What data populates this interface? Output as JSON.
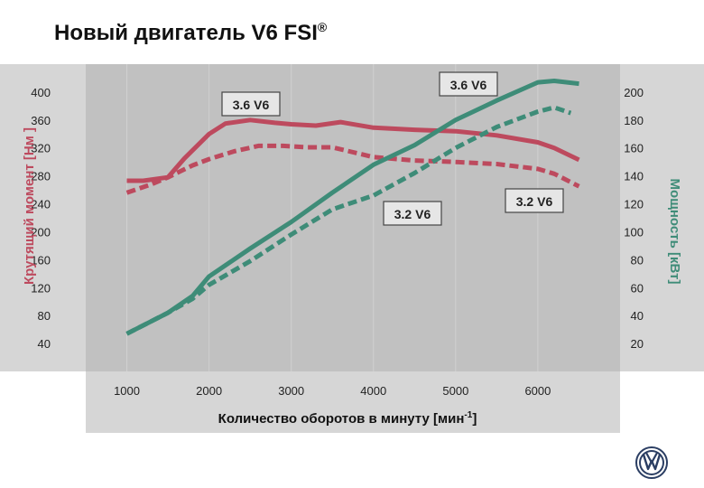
{
  "title": "Новый двигатель V6 FSI",
  "title_mark": "®",
  "logo": "VW",
  "colors": {
    "torque": "#bd4a5e",
    "power": "#3e8c78",
    "panel": "#d6d6d6",
    "plot": "#c0c0c0"
  },
  "chart_data": {
    "type": "line",
    "title": "Новый двигатель V6 FSI®",
    "xlabel": "Количество оборотов в минуту [мин",
    "xlabel_sup": "-1",
    "xlabel_end": "]",
    "ylabel_left": "Крутящий момент [Нм ]",
    "ylabel_right": "Мощность [кВт]",
    "x_ticks": [
      1000,
      2000,
      3000,
      4000,
      5000,
      6000
    ],
    "xlim": [
      500,
      7000
    ],
    "y_left_ticks": [
      40,
      80,
      120,
      160,
      200,
      240,
      280,
      320,
      360,
      400
    ],
    "y_left_lim": [
      0,
      440
    ],
    "y_right_ticks": [
      20,
      40,
      60,
      80,
      100,
      120,
      140,
      160,
      180,
      200
    ],
    "y_right_lim": [
      0,
      220
    ],
    "series": [
      {
        "name": "3.6 V6",
        "quantity": "torque",
        "axis": "left",
        "style": "solid",
        "x": [
          1000,
          1200,
          1500,
          1700,
          2000,
          2200,
          2500,
          2800,
          3000,
          3300,
          3600,
          4000,
          4500,
          5000,
          5500,
          6000,
          6200,
          6500
        ],
        "values": [
          273,
          273,
          278,
          305,
          340,
          355,
          360,
          356,
          354,
          352,
          357,
          349,
          346,
          344,
          338,
          328,
          320,
          303
        ]
      },
      {
        "name": "3.2 V6",
        "quantity": "torque",
        "axis": "left",
        "style": "dashed",
        "x": [
          1000,
          1300,
          1500,
          1800,
          2000,
          2300,
          2600,
          2900,
          3200,
          3500,
          4000,
          4500,
          5000,
          5500,
          6000,
          6200,
          6500
        ],
        "values": [
          256,
          268,
          278,
          295,
          304,
          315,
          323,
          323,
          321,
          321,
          307,
          302,
          300,
          297,
          290,
          283,
          265
        ]
      },
      {
        "name": "3.6 V6",
        "quantity": "power",
        "axis": "right",
        "style": "solid",
        "x": [
          1000,
          1500,
          1800,
          2000,
          2500,
          3000,
          3500,
          4000,
          4500,
          5000,
          5500,
          6000,
          6200,
          6500
        ],
        "values": [
          27,
          42,
          54,
          68,
          88,
          107,
          128,
          148,
          162,
          180,
          194,
          207,
          208,
          206
        ]
      },
      {
        "name": "3.2 V6",
        "quantity": "power",
        "axis": "right",
        "style": "dashed",
        "x": [
          1000,
          1500,
          1800,
          2000,
          2500,
          3000,
          3500,
          4000,
          4500,
          5000,
          5500,
          6000,
          6200,
          6400
        ],
        "values": [
          27,
          42,
          52,
          62,
          79,
          98,
          116,
          126,
          142,
          160,
          175,
          186,
          189,
          185
        ]
      }
    ],
    "annotations": [
      {
        "text": "3.6 V6",
        "at_series": 2
      },
      {
        "text": "3.6 V6",
        "at_series": 0
      },
      {
        "text": "3.2 V6",
        "at_series": 1
      },
      {
        "text": "3.2 V6",
        "at_series": 3
      }
    ]
  }
}
